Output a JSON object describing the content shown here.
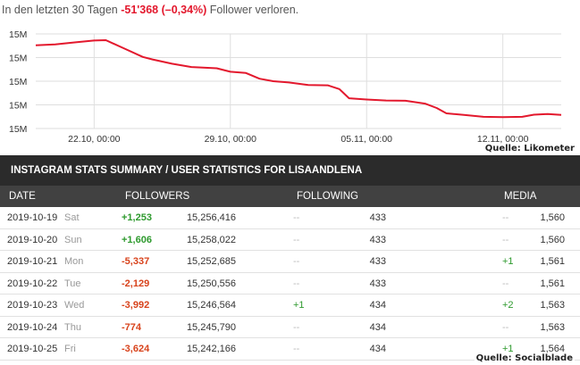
{
  "summary": {
    "prefix": "In den letzten 30 Tagen ",
    "change": "-51'368 (–0,34%)",
    "suffix": " Follower verloren."
  },
  "chart_data": {
    "type": "line",
    "y_tick_labels": [
      "15M",
      "15M",
      "15M",
      "15M",
      "15M"
    ],
    "ylim": [
      15230000,
      15260000
    ],
    "x_tick_labels": [
      "22.10, 00:00",
      "29.10, 00:00",
      "05.11, 00:00",
      "12.11, 00:00"
    ],
    "x_tick_days": [
      3,
      10,
      17,
      24
    ],
    "xlim": [
      0,
      27
    ],
    "grid": true,
    "line_color": "#e3182d",
    "series": [
      {
        "x": [
          0,
          1,
          2,
          3,
          3.6,
          4.5,
          5.5,
          6,
          7,
          8,
          8.6,
          9.3,
          10,
          10.8,
          11.5,
          12.2,
          13,
          14,
          15,
          15.6,
          16.1,
          17,
          18,
          19,
          20,
          20.6,
          21.1,
          22,
          23,
          24,
          25,
          25.6,
          26.3,
          27
        ],
        "y": [
          15256400,
          15256700,
          15257300,
          15257900,
          15258022,
          15255500,
          15252700,
          15251900,
          15250556,
          15249500,
          15249300,
          15249100,
          15248000,
          15247600,
          15245800,
          15245000,
          15244600,
          15243800,
          15243700,
          15242500,
          15239600,
          15239200,
          15238900,
          15238800,
          15237900,
          15236500,
          15234800,
          15234300,
          15233700,
          15233600,
          15233700,
          15234400,
          15234600,
          15234300
        ]
      }
    ]
  },
  "chart_source": "Quelle: Likometer",
  "stats": {
    "title": "INSTAGRAM STATS SUMMARY / USER STATISTICS FOR LISAANDLENA",
    "headers": {
      "date": "DATE",
      "followers": "FOLLOWERS",
      "following": "FOLLOWING",
      "media": "MEDIA"
    },
    "rows": [
      {
        "date": "2019-10-19",
        "day": "Sat",
        "delta": "+1,253",
        "total": "15,256,416",
        "fdelta": "--",
        "following": "433",
        "mdelta": "--",
        "media": "1,560"
      },
      {
        "date": "2019-10-20",
        "day": "Sun",
        "delta": "+1,606",
        "total": "15,258,022",
        "fdelta": "--",
        "following": "433",
        "mdelta": "--",
        "media": "1,560"
      },
      {
        "date": "2019-10-21",
        "day": "Mon",
        "delta": "-5,337",
        "total": "15,252,685",
        "fdelta": "--",
        "following": "433",
        "mdelta": "+1",
        "media": "1,561"
      },
      {
        "date": "2019-10-22",
        "day": "Tue",
        "delta": "-2,129",
        "total": "15,250,556",
        "fdelta": "--",
        "following": "433",
        "mdelta": "--",
        "media": "1,561"
      },
      {
        "date": "2019-10-23",
        "day": "Wed",
        "delta": "-3,992",
        "total": "15,246,564",
        "fdelta": "+1",
        "following": "434",
        "mdelta": "+2",
        "media": "1,563"
      },
      {
        "date": "2019-10-24",
        "day": "Thu",
        "delta": "-774",
        "total": "15,245,790",
        "fdelta": "--",
        "following": "434",
        "mdelta": "--",
        "media": "1,563"
      },
      {
        "date": "2019-10-25",
        "day": "Fri",
        "delta": "-3,624",
        "total": "15,242,166",
        "fdelta": "--",
        "following": "434",
        "mdelta": "+1",
        "media": "1,564"
      }
    ],
    "source": "Quelle: Socialblade"
  }
}
